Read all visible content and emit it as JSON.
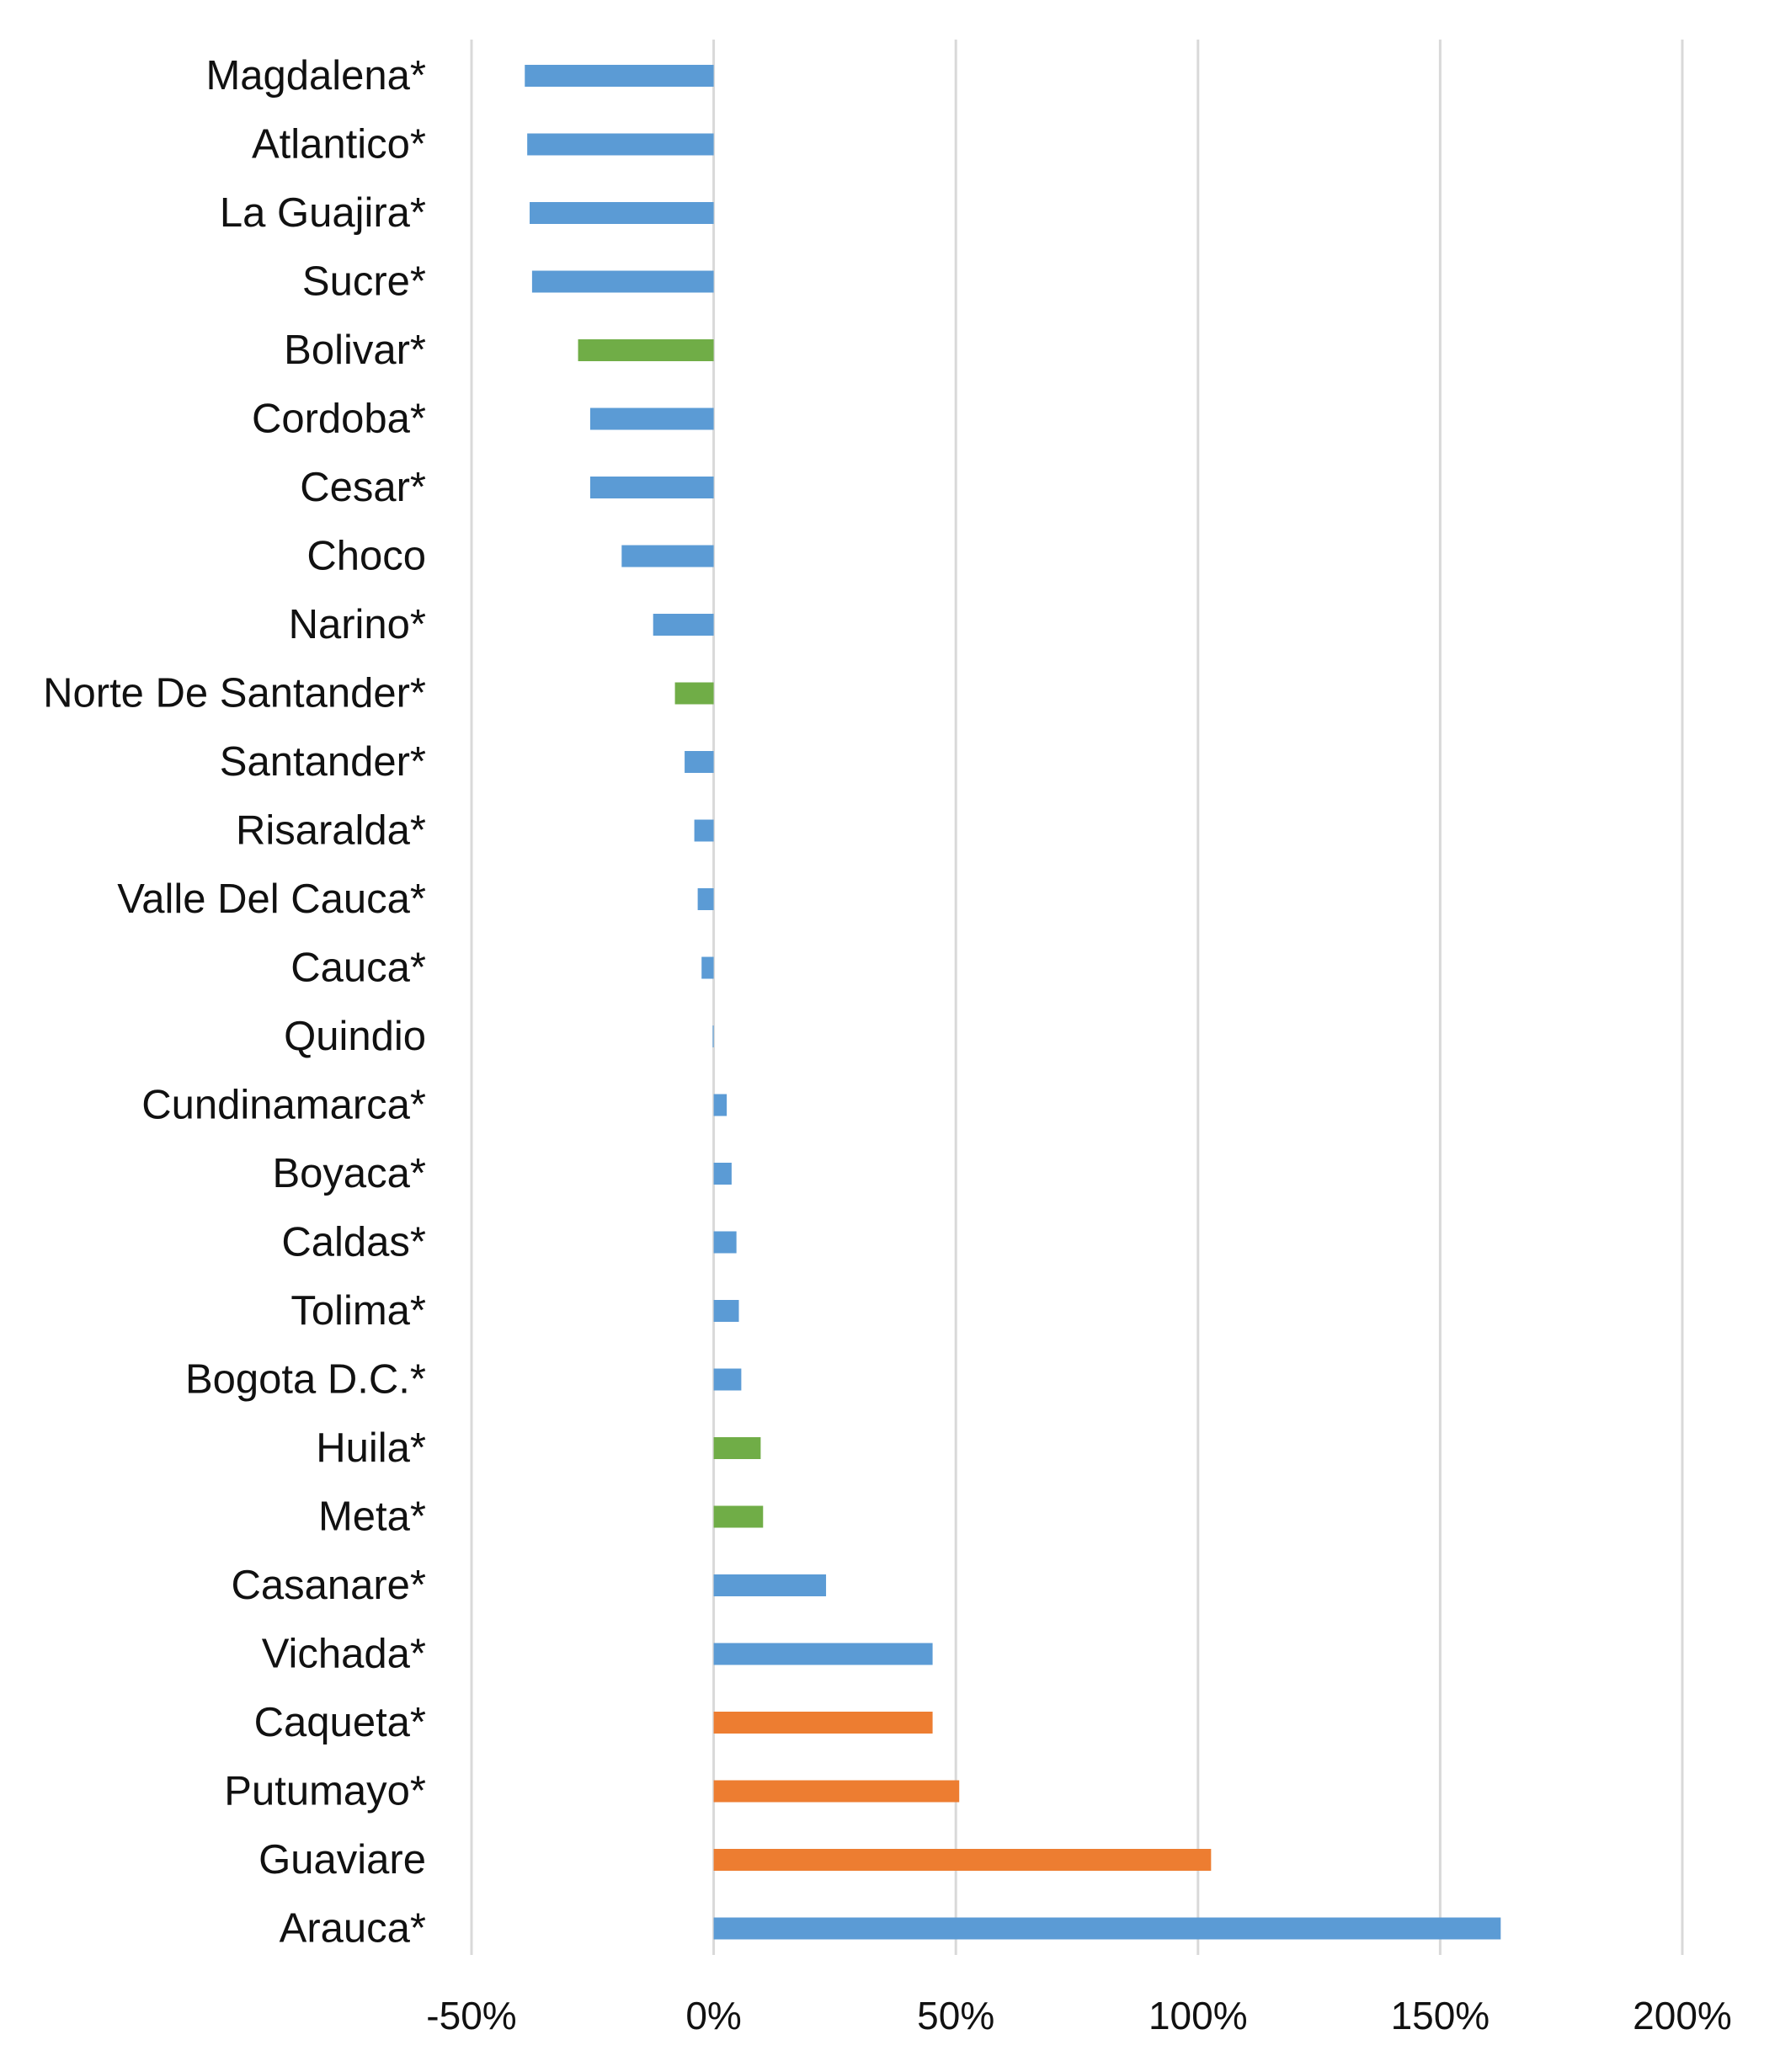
{
  "chart_data": {
    "type": "bar",
    "orientation": "horizontal",
    "title": "",
    "xlabel": "",
    "ylabel": "",
    "xlim": [
      -0.5,
      2.0
    ],
    "x_ticks": [
      -0.5,
      0,
      0.5,
      1.0,
      1.5,
      2.0
    ],
    "x_tick_labels": [
      "-50%",
      "0%",
      "50%",
      "100%",
      "150%",
      "200%"
    ],
    "grid": "vertical",
    "legend": "none",
    "colors": {
      "blue": "#5b9bd5",
      "green": "#70ad47",
      "orange": "#ed7d31"
    },
    "categories": [
      "Magdalena*",
      "Atlantico*",
      "La Guajira*",
      "Sucre*",
      "Bolivar*",
      "Cordoba*",
      "Cesar*",
      "Choco",
      "Narino*",
      "Norte De Santander*",
      "Santander*",
      "Risaralda*",
      "Valle Del Cauca*",
      "Cauca*",
      "Quindio",
      "Cundinamarca*",
      "Boyaca*",
      "Caldas*",
      "Tolima*",
      "Bogota D.C.*",
      "Huila*",
      "Meta*",
      "Casanare*",
      "Vichada*",
      "Caqueta*",
      "Putumayo*",
      "Guaviare",
      "Arauca*"
    ],
    "values": [
      -0.39,
      -0.385,
      -0.38,
      -0.375,
      -0.28,
      -0.255,
      -0.255,
      -0.19,
      -0.125,
      -0.08,
      -0.06,
      -0.04,
      -0.033,
      -0.025,
      -0.002,
      0.027,
      0.037,
      0.047,
      0.052,
      0.057,
      0.097,
      0.102,
      0.232,
      0.452,
      0.452,
      0.507,
      1.027,
      1.625
    ],
    "bar_colors": [
      "blue",
      "blue",
      "blue",
      "blue",
      "green",
      "blue",
      "blue",
      "blue",
      "blue",
      "green",
      "blue",
      "blue",
      "blue",
      "blue",
      "blue",
      "blue",
      "blue",
      "blue",
      "blue",
      "blue",
      "green",
      "green",
      "blue",
      "blue",
      "orange",
      "orange",
      "orange",
      "blue"
    ]
  }
}
